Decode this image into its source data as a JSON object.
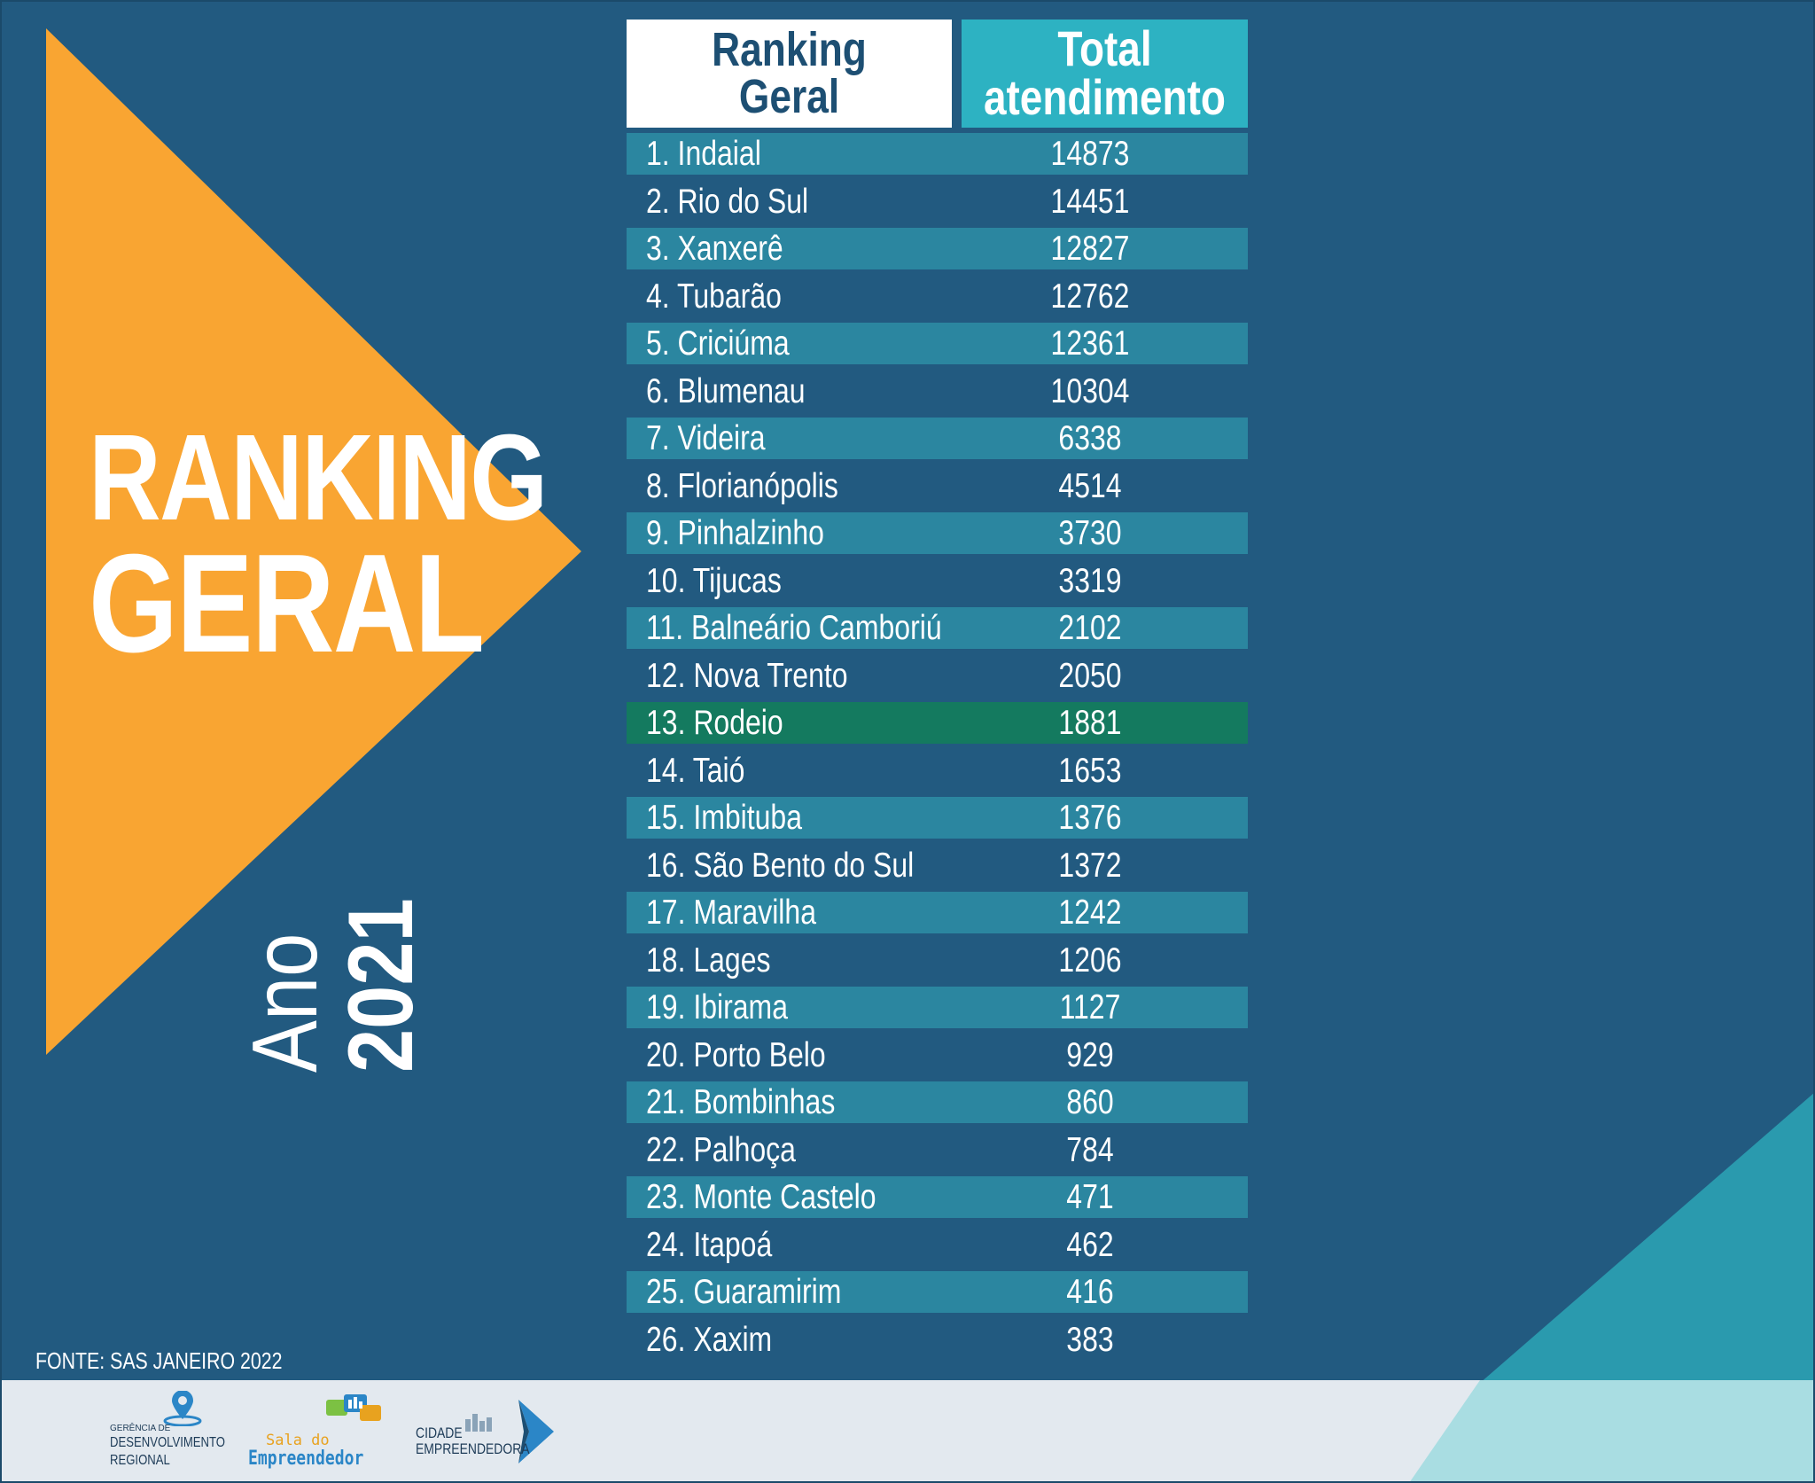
{
  "poster": {
    "title_line1": "RANKING",
    "title_line2": "GERAL",
    "year_label": "Ano",
    "year": "2021",
    "source": "FONTE: SAS JANEIRO 2022"
  },
  "table": {
    "header_rank_line1": "Ranking",
    "header_rank_line2": "Geral",
    "header_total_line1": "Total",
    "header_total_line2": "atendimento"
  },
  "logos": {
    "gdr_line1": "GERÊNCIA DE",
    "gdr_line2": "DESENVOLVIMENTO",
    "gdr_line3": "REGIONAL",
    "sala_line1": "Sala do",
    "sala_line2": "Empreendedor",
    "cidade_line1": "CIDADE",
    "cidade_line2": "EMPREENDEDORA"
  },
  "colors": {
    "background": "#225a80",
    "triangle": "#f9a532",
    "band": "#2b86a0",
    "highlight": "#147a5f",
    "header_total": "#2db2c2",
    "footer": "#e3e9ef",
    "corner_teal": "#2a9aae"
  },
  "chart_data": {
    "type": "table",
    "columns": [
      "Ranking Geral",
      "Total atendimento"
    ],
    "highlighted_row": "13. Rodeio",
    "rows": [
      {
        "label": "1. Indaial",
        "value": 14873
      },
      {
        "label": "2. Rio do Sul",
        "value": 14451
      },
      {
        "label": "3. Xanxerê",
        "value": 12827
      },
      {
        "label": "4. Tubarão",
        "value": 12762
      },
      {
        "label": "5. Criciúma",
        "value": 12361
      },
      {
        "label": "6. Blumenau",
        "value": 10304
      },
      {
        "label": "7. Videira",
        "value": 6338
      },
      {
        "label": "8. Florianópolis",
        "value": 4514
      },
      {
        "label": "9. Pinhalzinho",
        "value": 3730
      },
      {
        "label": "10. Tijucas",
        "value": 3319
      },
      {
        "label": "11. Balneário Camboriú",
        "value": 2102
      },
      {
        "label": "12. Nova Trento",
        "value": 2050
      },
      {
        "label": "13. Rodeio",
        "value": 1881
      },
      {
        "label": "14. Taió",
        "value": 1653
      },
      {
        "label": "15. Imbituba",
        "value": 1376
      },
      {
        "label": "16. São Bento do Sul",
        "value": 1372
      },
      {
        "label": "17. Maravilha",
        "value": 1242
      },
      {
        "label": "18. Lages",
        "value": 1206
      },
      {
        "label": "19. Ibirama",
        "value": 1127
      },
      {
        "label": "20. Porto Belo",
        "value": 929
      },
      {
        "label": "21. Bombinhas",
        "value": 860
      },
      {
        "label": "22. Palhoça",
        "value": 784
      },
      {
        "label": "23. Monte Castelo",
        "value": 471
      },
      {
        "label": "24. Itapoá",
        "value": 462
      },
      {
        "label": "25. Guaramirim",
        "value": 416
      },
      {
        "label": "26. Xaxim",
        "value": 383
      }
    ]
  }
}
